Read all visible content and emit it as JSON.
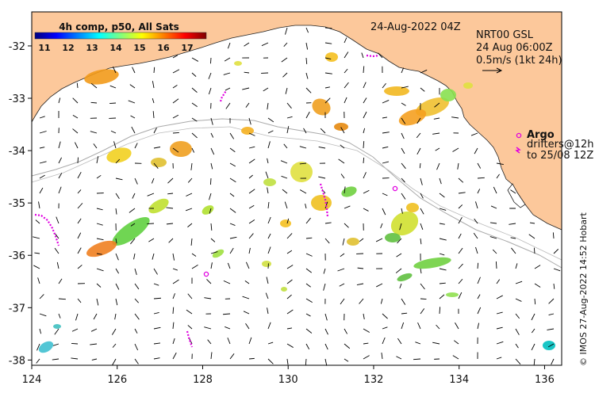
{
  "map": {
    "timestamp": "24-Aug-2022 04Z",
    "lon_ticks": [
      "124",
      "126",
      "128",
      "130",
      "132",
      "134",
      "136"
    ],
    "lat_ticks": [
      "-32",
      "-33",
      "-34",
      "-35",
      "-36",
      "-37",
      "-38"
    ],
    "lon_range": [
      124,
      136.4
    ],
    "lat_range": [
      -38.1,
      -31.35
    ],
    "land_color": "#fcc89b",
    "sea_color": "#ffffff"
  },
  "sst_legend": {
    "title": "4h comp, p50, All Sats",
    "labels": [
      "11",
      "12",
      "13",
      "14",
      "15",
      "16",
      "17"
    ],
    "range": [
      10.6,
      17.8
    ],
    "colors": [
      "#00007f",
      "#0000ff",
      "#007fff",
      "#00ffff",
      "#7fff7f",
      "#ffff00",
      "#ff7f00",
      "#ff0000",
      "#7f0000"
    ]
  },
  "currents": {
    "source": "NRT00 GSL",
    "time": "24 Aug 06:00Z",
    "scale": "0.5m/s (1kt 24h)"
  },
  "argo": {
    "label": "Argo",
    "drifters_line1": "drifters@12h",
    "drifters_line2": "to 25/08 12Z",
    "color": "#e000e0"
  },
  "credit": "© IMOS 27-Aug-2022 14:52 Hobart"
}
